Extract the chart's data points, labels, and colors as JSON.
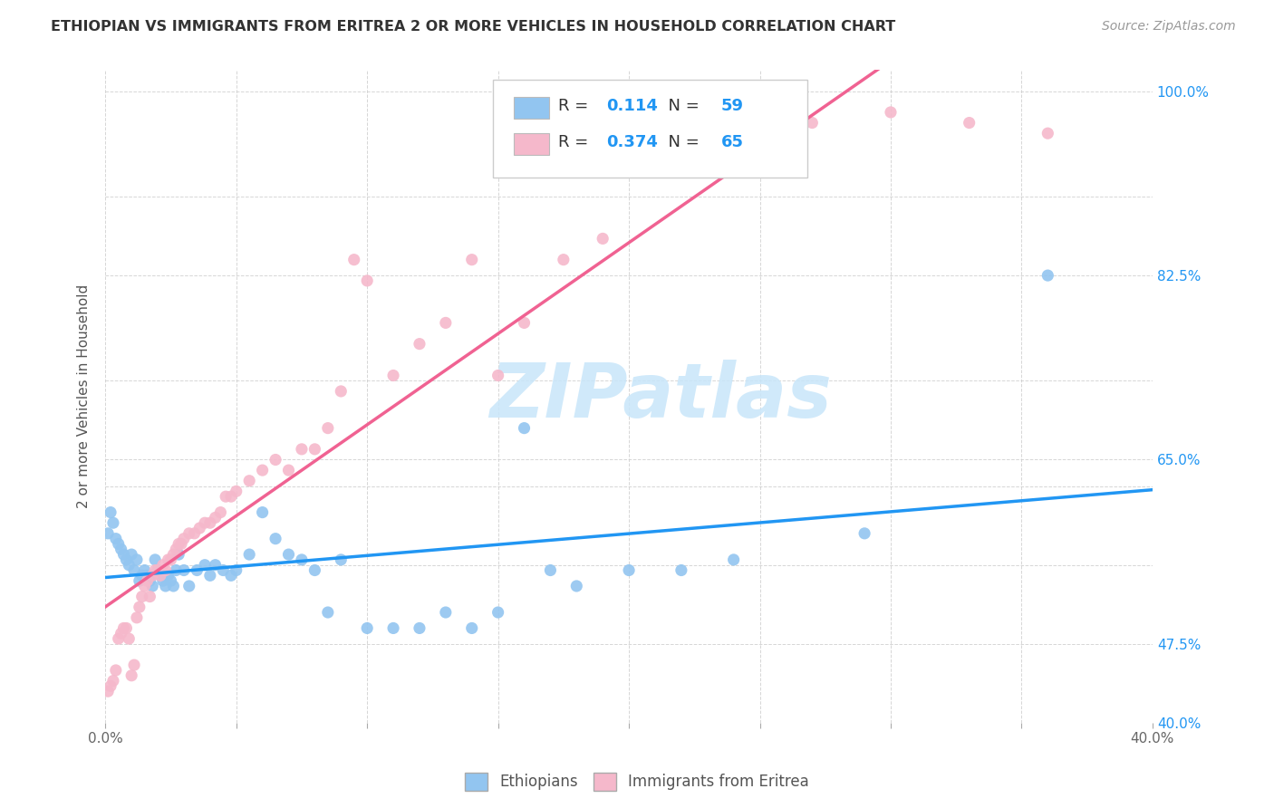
{
  "title": "ETHIOPIAN VS IMMIGRANTS FROM ERITREA 2 OR MORE VEHICLES IN HOUSEHOLD CORRELATION CHART",
  "source": "Source: ZipAtlas.com",
  "ylabel": "2 or more Vehicles in Household",
  "x_min": 0.0,
  "x_max": 0.4,
  "y_min": 0.4,
  "y_max": 1.02,
  "x_tick_positions": [
    0.0,
    0.05,
    0.1,
    0.15,
    0.2,
    0.25,
    0.3,
    0.35,
    0.4
  ],
  "x_tick_labels": [
    "0.0%",
    "",
    "",
    "",
    "",
    "",
    "",
    "",
    "40.0%"
  ],
  "y_tick_positions": [
    0.4,
    0.475,
    0.55,
    0.625,
    0.65,
    0.725,
    0.825,
    0.9,
    1.0
  ],
  "y_tick_labels_right": [
    "40.0%",
    "47.5%",
    "",
    "",
    "65.0%",
    "",
    "82.5%",
    "",
    "100.0%"
  ],
  "blue_R": "0.114",
  "blue_N": "59",
  "pink_R": "0.374",
  "pink_N": "65",
  "blue_color": "#92C5F0",
  "pink_color": "#F5B8CB",
  "blue_line_color": "#2196F3",
  "pink_line_color": "#F06292",
  "watermark_text": "ZIPatlas",
  "watermark_color": "#C8E6FA",
  "legend_labels": [
    "Ethiopians",
    "Immigrants from Eritrea"
  ],
  "blue_scatter_x": [
    0.001,
    0.002,
    0.003,
    0.004,
    0.005,
    0.006,
    0.007,
    0.008,
    0.009,
    0.01,
    0.011,
    0.012,
    0.013,
    0.014,
    0.015,
    0.016,
    0.017,
    0.018,
    0.019,
    0.02,
    0.021,
    0.022,
    0.023,
    0.024,
    0.025,
    0.026,
    0.027,
    0.028,
    0.03,
    0.032,
    0.035,
    0.038,
    0.04,
    0.042,
    0.045,
    0.048,
    0.05,
    0.055,
    0.06,
    0.065,
    0.07,
    0.075,
    0.08,
    0.085,
    0.09,
    0.1,
    0.11,
    0.12,
    0.13,
    0.14,
    0.15,
    0.16,
    0.17,
    0.18,
    0.2,
    0.22,
    0.24,
    0.29,
    0.36
  ],
  "blue_scatter_y": [
    0.58,
    0.6,
    0.59,
    0.575,
    0.57,
    0.565,
    0.56,
    0.555,
    0.55,
    0.56,
    0.545,
    0.555,
    0.535,
    0.54,
    0.545,
    0.54,
    0.535,
    0.53,
    0.555,
    0.545,
    0.54,
    0.535,
    0.53,
    0.54,
    0.535,
    0.53,
    0.545,
    0.56,
    0.545,
    0.53,
    0.545,
    0.55,
    0.54,
    0.55,
    0.545,
    0.54,
    0.545,
    0.56,
    0.6,
    0.575,
    0.56,
    0.555,
    0.545,
    0.505,
    0.555,
    0.49,
    0.49,
    0.49,
    0.505,
    0.49,
    0.505,
    0.68,
    0.545,
    0.53,
    0.545,
    0.545,
    0.555,
    0.58,
    0.825
  ],
  "pink_scatter_x": [
    0.001,
    0.002,
    0.003,
    0.004,
    0.005,
    0.006,
    0.007,
    0.008,
    0.009,
    0.01,
    0.011,
    0.012,
    0.013,
    0.014,
    0.015,
    0.016,
    0.017,
    0.018,
    0.019,
    0.02,
    0.021,
    0.022,
    0.023,
    0.024,
    0.025,
    0.026,
    0.027,
    0.028,
    0.029,
    0.03,
    0.032,
    0.034,
    0.036,
    0.038,
    0.04,
    0.042,
    0.044,
    0.046,
    0.048,
    0.05,
    0.055,
    0.06,
    0.065,
    0.07,
    0.075,
    0.08,
    0.085,
    0.09,
    0.095,
    0.1,
    0.11,
    0.12,
    0.13,
    0.14,
    0.15,
    0.16,
    0.175,
    0.19,
    0.21,
    0.23,
    0.25,
    0.27,
    0.3,
    0.33,
    0.36
  ],
  "pink_scatter_y": [
    0.43,
    0.435,
    0.44,
    0.45,
    0.48,
    0.485,
    0.49,
    0.49,
    0.48,
    0.445,
    0.455,
    0.5,
    0.51,
    0.52,
    0.53,
    0.535,
    0.52,
    0.54,
    0.545,
    0.545,
    0.54,
    0.55,
    0.545,
    0.555,
    0.555,
    0.56,
    0.565,
    0.57,
    0.57,
    0.575,
    0.58,
    0.58,
    0.585,
    0.59,
    0.59,
    0.595,
    0.6,
    0.615,
    0.615,
    0.62,
    0.63,
    0.64,
    0.65,
    0.64,
    0.66,
    0.66,
    0.68,
    0.715,
    0.84,
    0.82,
    0.73,
    0.76,
    0.78,
    0.84,
    0.73,
    0.78,
    0.84,
    0.86,
    0.97,
    0.98,
    0.96,
    0.97,
    0.98,
    0.97,
    0.96
  ]
}
